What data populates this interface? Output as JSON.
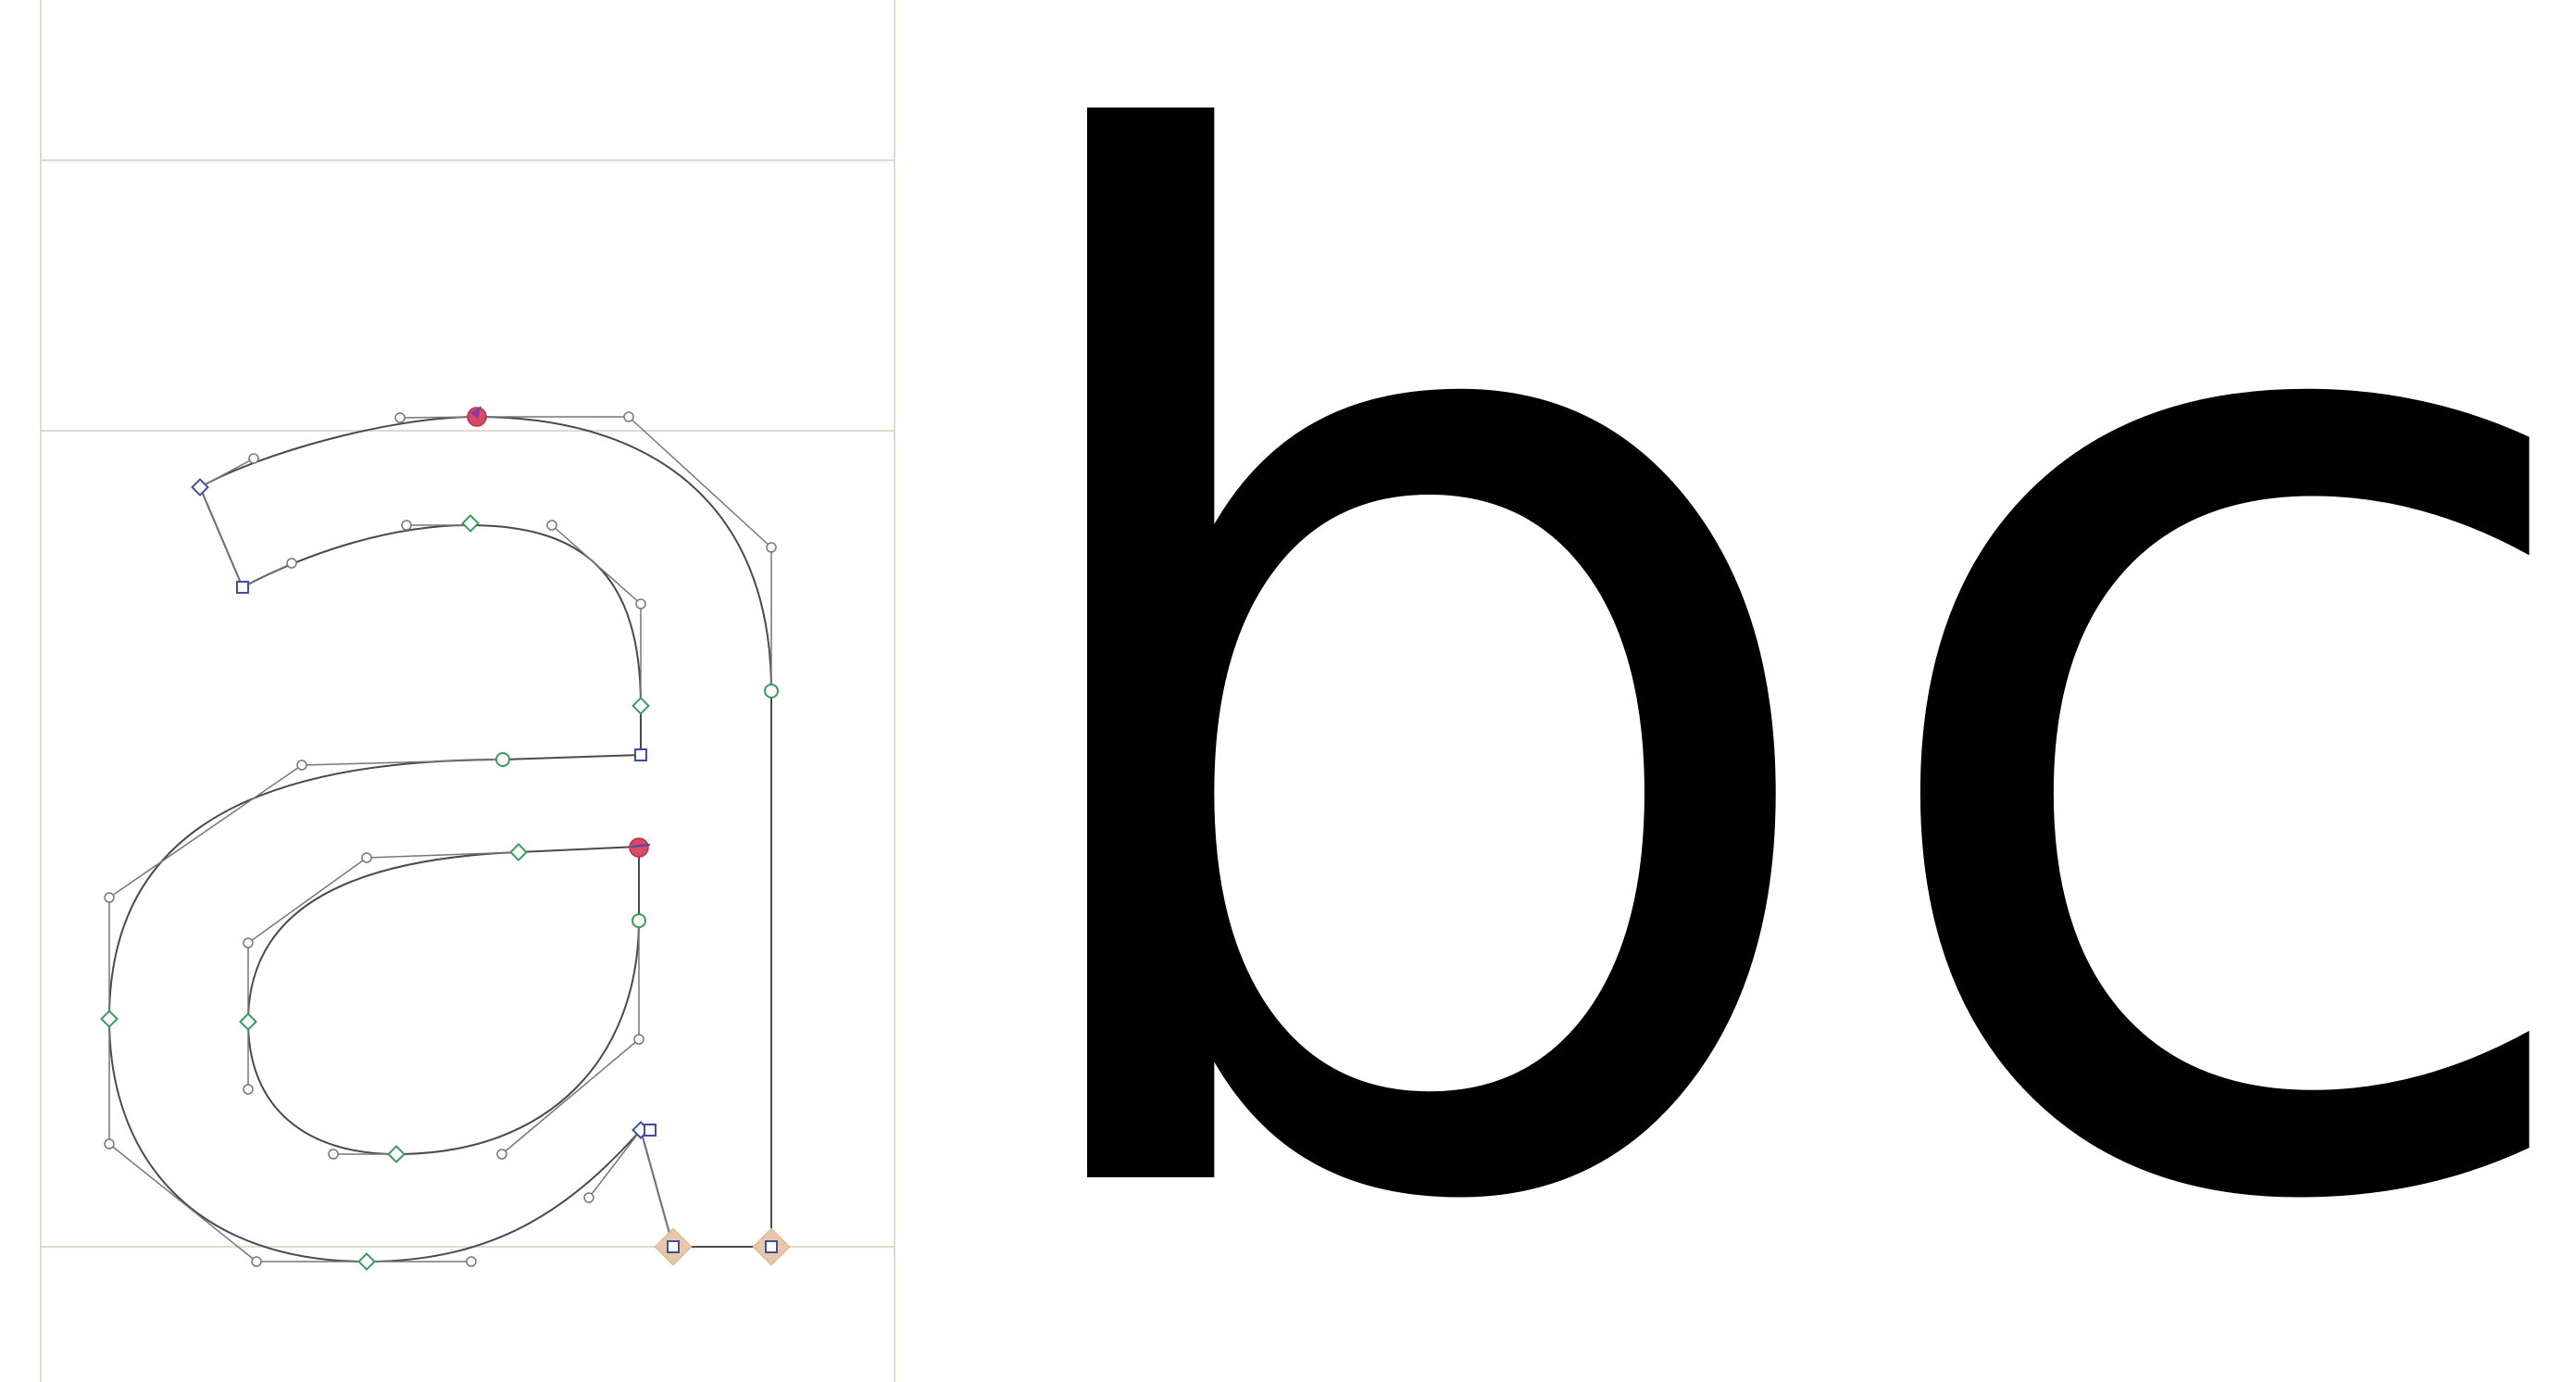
{
  "editor": {
    "glyph_text": "a",
    "colors": {
      "metric_line": "#e7d9c9",
      "outline": "#4a4a4a",
      "handle_line": "#777777",
      "off_curve": "#777777",
      "smooth_point": "#3a9a5a",
      "corner_point": "#3c4fa0",
      "selected_point": "#d94a6a",
      "start_point": "#e8c7a8"
    }
  },
  "preview": {
    "glyph_b": "b",
    "glyph_c": "c"
  }
}
